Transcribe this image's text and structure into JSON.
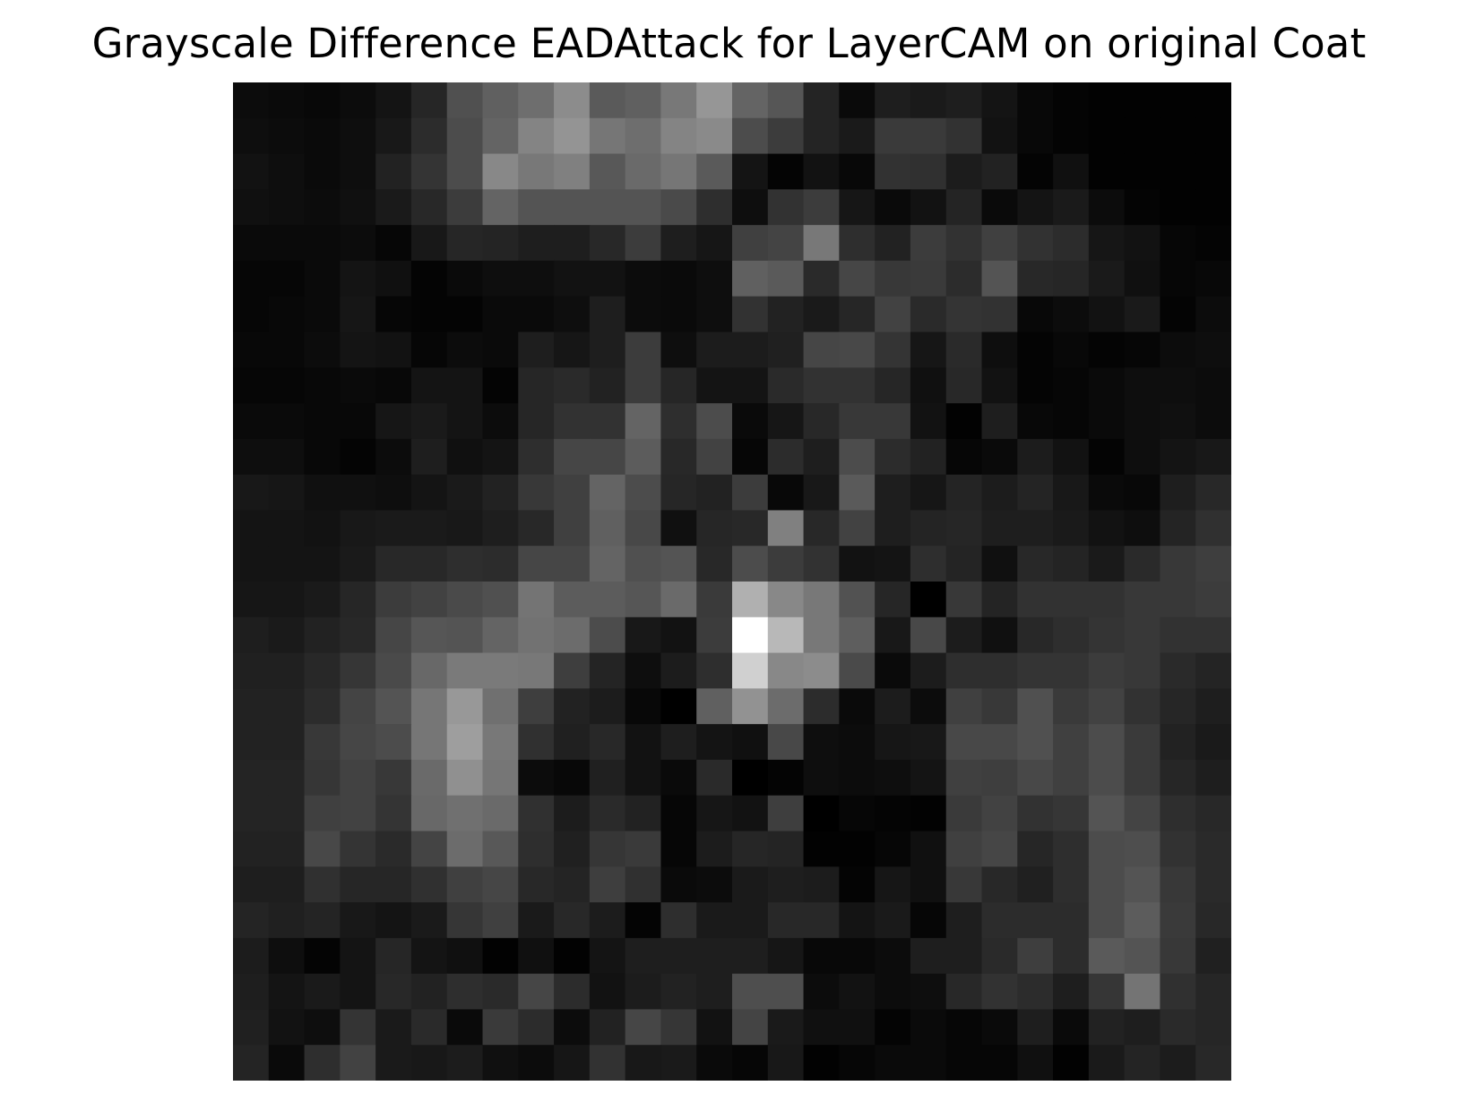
{
  "chart_data": {
    "type": "heatmap",
    "title": "Grayscale Difference EADAttack for LayerCAM on original Coat",
    "colormap": "gray",
    "axes_visible": false,
    "grid": false,
    "value_range": [
      0,
      255
    ],
    "rows": 28,
    "cols": 28,
    "values": [
      [
        12,
        10,
        8,
        12,
        20,
        38,
        80,
        96,
        110,
        140,
        90,
        96,
        120,
        150,
        100,
        86,
        36,
        10,
        30,
        26,
        30,
        20,
        8,
        4,
        2,
        2,
        2,
        2
      ],
      [
        14,
        12,
        10,
        14,
        24,
        44,
        76,
        100,
        132,
        148,
        118,
        110,
        132,
        138,
        76,
        60,
        36,
        26,
        58,
        58,
        50,
        18,
        8,
        4,
        2,
        2,
        2,
        2
      ],
      [
        18,
        14,
        10,
        14,
        34,
        52,
        76,
        136,
        120,
        128,
        88,
        106,
        118,
        90,
        20,
        4,
        18,
        8,
        50,
        48,
        28,
        34,
        4,
        16,
        2,
        2,
        2,
        2
      ],
      [
        16,
        14,
        12,
        16,
        26,
        40,
        60,
        100,
        84,
        84,
        84,
        84,
        74,
        46,
        14,
        50,
        60,
        22,
        10,
        18,
        36,
        10,
        20,
        26,
        12,
        4,
        2,
        2
      ],
      [
        10,
        10,
        10,
        12,
        6,
        24,
        38,
        36,
        30,
        30,
        40,
        60,
        30,
        22,
        64,
        68,
        120,
        46,
        34,
        60,
        50,
        64,
        50,
        44,
        22,
        18,
        6,
        4
      ],
      [
        6,
        6,
        10,
        20,
        16,
        4,
        10,
        14,
        14,
        18,
        18,
        12,
        10,
        14,
        96,
        90,
        42,
        70,
        56,
        58,
        44,
        84,
        40,
        38,
        26,
        16,
        6,
        8
      ],
      [
        6,
        8,
        10,
        22,
        6,
        4,
        4,
        10,
        10,
        14,
        30,
        12,
        10,
        14,
        50,
        34,
        26,
        38,
        66,
        42,
        52,
        50,
        8,
        12,
        18,
        26,
        4,
        12
      ],
      [
        8,
        8,
        12,
        20,
        18,
        6,
        12,
        10,
        30,
        22,
        30,
        60,
        14,
        28,
        28,
        32,
        70,
        72,
        52,
        22,
        42,
        14,
        4,
        8,
        4,
        6,
        12,
        14
      ],
      [
        6,
        6,
        8,
        10,
        8,
        20,
        20,
        4,
        38,
        42,
        34,
        60,
        38,
        20,
        20,
        42,
        50,
        50,
        38,
        16,
        40,
        18,
        4,
        6,
        10,
        14,
        14,
        12
      ],
      [
        10,
        10,
        8,
        8,
        22,
        26,
        20,
        12,
        38,
        50,
        50,
        100,
        46,
        76,
        10,
        22,
        40,
        56,
        56,
        18,
        2,
        30,
        8,
        6,
        10,
        14,
        16,
        12
      ],
      [
        14,
        14,
        8,
        4,
        12,
        30,
        16,
        20,
        46,
        70,
        70,
        92,
        40,
        66,
        6,
        44,
        30,
        76,
        44,
        34,
        6,
        10,
        28,
        18,
        4,
        14,
        20,
        24
      ],
      [
        24,
        22,
        16,
        16,
        14,
        20,
        26,
        34,
        56,
        64,
        100,
        76,
        38,
        34,
        60,
        8,
        24,
        90,
        30,
        22,
        36,
        28,
        36,
        24,
        10,
        8,
        30,
        40
      ],
      [
        20,
        20,
        18,
        24,
        26,
        26,
        24,
        30,
        40,
        64,
        96,
        72,
        16,
        38,
        40,
        128,
        40,
        66,
        30,
        36,
        38,
        30,
        30,
        26,
        18,
        14,
        36,
        48
      ],
      [
        20,
        20,
        20,
        26,
        40,
        40,
        46,
        44,
        70,
        70,
        100,
        80,
        84,
        40,
        76,
        60,
        50,
        18,
        20,
        46,
        36,
        16,
        40,
        36,
        26,
        42,
        56,
        62
      ],
      [
        22,
        22,
        26,
        38,
        60,
        66,
        74,
        80,
        116,
        92,
        92,
        86,
        106,
        58,
        176,
        136,
        120,
        82,
        38,
        0,
        56,
        36,
        50,
        50,
        50,
        56,
        56,
        60
      ],
      [
        30,
        26,
        34,
        40,
        70,
        86,
        84,
        100,
        114,
        108,
        76,
        24,
        18,
        60,
        255,
        184,
        120,
        94,
        24,
        72,
        28,
        16,
        40,
        46,
        52,
        56,
        50,
        50
      ],
      [
        32,
        32,
        40,
        54,
        74,
        104,
        122,
        122,
        120,
        62,
        36,
        14,
        28,
        46,
        208,
        136,
        140,
        74,
        10,
        28,
        46,
        46,
        52,
        52,
        60,
        56,
        42,
        36
      ],
      [
        34,
        34,
        44,
        68,
        84,
        118,
        152,
        112,
        62,
        34,
        28,
        8,
        0,
        96,
        146,
        108,
        44,
        10,
        28,
        12,
        64,
        56,
        80,
        58,
        66,
        50,
        38,
        30
      ],
      [
        34,
        34,
        56,
        70,
        76,
        118,
        158,
        120,
        48,
        32,
        40,
        18,
        30,
        20,
        16,
        72,
        14,
        12,
        22,
        24,
        72,
        72,
        80,
        64,
        76,
        58,
        34,
        26
      ],
      [
        36,
        36,
        54,
        66,
        56,
        106,
        144,
        118,
        12,
        8,
        32,
        18,
        10,
        42,
        0,
        4,
        14,
        12,
        14,
        20,
        64,
        62,
        72,
        64,
        76,
        58,
        38,
        30
      ],
      [
        36,
        36,
        64,
        66,
        52,
        104,
        112,
        106,
        48,
        28,
        42,
        34,
        6,
        22,
        18,
        62,
        0,
        6,
        4,
        2,
        58,
        66,
        50,
        54,
        84,
        68,
        46,
        40
      ],
      [
        34,
        34,
        72,
        52,
        42,
        68,
        108,
        88,
        46,
        32,
        54,
        58,
        6,
        28,
        38,
        36,
        2,
        2,
        6,
        16,
        64,
        70,
        38,
        46,
        76,
        78,
        50,
        42
      ],
      [
        30,
        30,
        48,
        38,
        38,
        48,
        64,
        70,
        40,
        36,
        62,
        48,
        10,
        12,
        26,
        30,
        28,
        4,
        22,
        16,
        56,
        40,
        32,
        46,
        76,
        84,
        56,
        42
      ],
      [
        36,
        32,
        36,
        24,
        20,
        26,
        54,
        64,
        26,
        40,
        28,
        4,
        46,
        26,
        26,
        40,
        40,
        20,
        26,
        6,
        30,
        44,
        44,
        44,
        76,
        92,
        58,
        40
      ],
      [
        28,
        14,
        4,
        20,
        38,
        20,
        16,
        2,
        16,
        2,
        20,
        30,
        30,
        30,
        30,
        22,
        8,
        8,
        12,
        30,
        30,
        42,
        62,
        44,
        90,
        84,
        56,
        32
      ],
      [
        30,
        20,
        26,
        20,
        40,
        34,
        46,
        42,
        70,
        44,
        18,
        28,
        34,
        30,
        78,
        78,
        12,
        18,
        12,
        14,
        40,
        50,
        44,
        30,
        54,
        116,
        48,
        38
      ],
      [
        32,
        18,
        14,
        52,
        26,
        42,
        10,
        58,
        44,
        12,
        34,
        70,
        54,
        18,
        68,
        26,
        16,
        16,
        4,
        10,
        6,
        10,
        30,
        10,
        34,
        30,
        42,
        38
      ],
      [
        36,
        10,
        46,
        66,
        26,
        24,
        28,
        16,
        12,
        22,
        50,
        24,
        26,
        10,
        6,
        24,
        2,
        6,
        10,
        10,
        6,
        6,
        16,
        2,
        26,
        36,
        28,
        40
      ]
    ]
  }
}
